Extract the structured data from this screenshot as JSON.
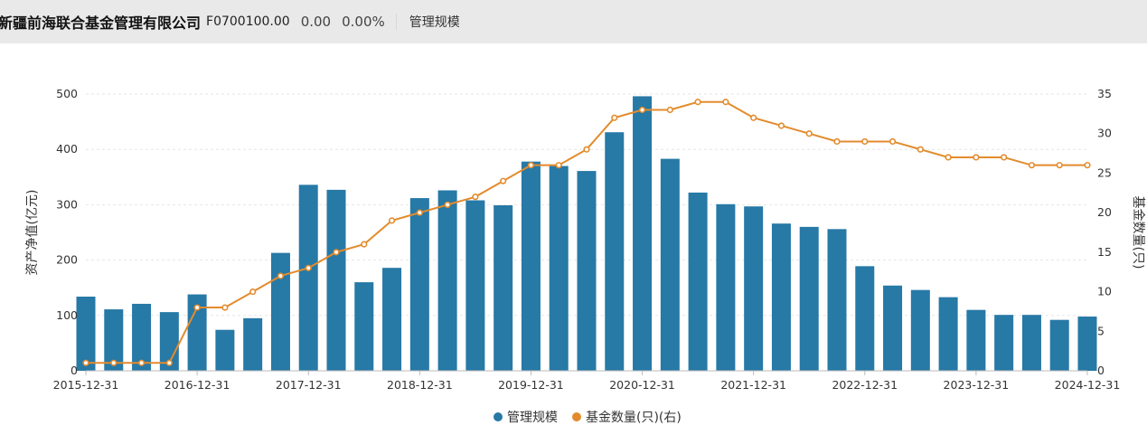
{
  "header": {
    "company": "新疆前海联合基金管理有限公司",
    "code": "F0700100.00",
    "price": "0.00",
    "change_pct": "0.00%",
    "tab_label": "管理规模"
  },
  "colors": {
    "bar": "#2779a6",
    "line": "#e38b2c",
    "header_bg": "#e9e9e9"
  },
  "chart_data": {
    "type": "bar",
    "categories": [
      "2015-12-31",
      "2016-03-31",
      "2016-06-30",
      "2016-09-30",
      "2016-12-31",
      "2017-03-31",
      "2017-06-30",
      "2017-09-30",
      "2017-12-31",
      "2018-03-31",
      "2018-06-30",
      "2018-09-30",
      "2018-12-31",
      "2019-03-31",
      "2019-06-30",
      "2019-09-30",
      "2019-12-31",
      "2020-03-31",
      "2020-06-30",
      "2020-09-30",
      "2020-12-31",
      "2021-03-31",
      "2021-06-30",
      "2021-09-30",
      "2021-12-31",
      "2022-03-31",
      "2022-06-30",
      "2022-09-30",
      "2022-12-31",
      "2023-03-31",
      "2023-06-30",
      "2023-09-30",
      "2023-12-31",
      "2024-03-31",
      "2024-06-30",
      "2024-09-30",
      "2024-12-31"
    ],
    "x_tick_labels": [
      "2015-12-31",
      "2016-12-31",
      "2017-12-31",
      "2018-12-31",
      "2019-12-31",
      "2020-12-31",
      "2021-12-31",
      "2022-12-31",
      "2023-12-31",
      "2024-12-31"
    ],
    "series": [
      {
        "name": "管理规模",
        "type": "bar",
        "axis": "left",
        "values": [
          134,
          111,
          121,
          106,
          138,
          74,
          95,
          213,
          336,
          327,
          160,
          186,
          312,
          326,
          308,
          299,
          378,
          370,
          361,
          431,
          496,
          383,
          322,
          301,
          297,
          266,
          260,
          256,
          189,
          154,
          146,
          133,
          110,
          101,
          101,
          92,
          98
        ]
      },
      {
        "name": "基金数量(只)(右)",
        "type": "line",
        "axis": "right",
        "values": [
          1,
          1,
          1,
          1,
          8,
          8,
          10,
          12,
          13,
          15,
          16,
          19,
          20,
          21,
          22,
          24,
          26,
          26,
          28,
          32,
          33,
          33,
          34,
          34,
          32,
          31,
          30,
          29,
          29,
          29,
          28,
          27,
          27,
          27,
          26,
          26,
          26
        ]
      }
    ],
    "y_left": {
      "label": "资产净值(亿元)",
      "min": 0,
      "max": 500,
      "ticks": [
        "0",
        "100",
        "200",
        "300",
        "400",
        "500"
      ]
    },
    "y_right": {
      "label": "基金数量(只)",
      "min": 0,
      "max": 35,
      "ticks": [
        "0",
        "5",
        "10",
        "15",
        "20",
        "25",
        "30",
        "35"
      ]
    },
    "grid": true,
    "legend_position": "bottom"
  }
}
